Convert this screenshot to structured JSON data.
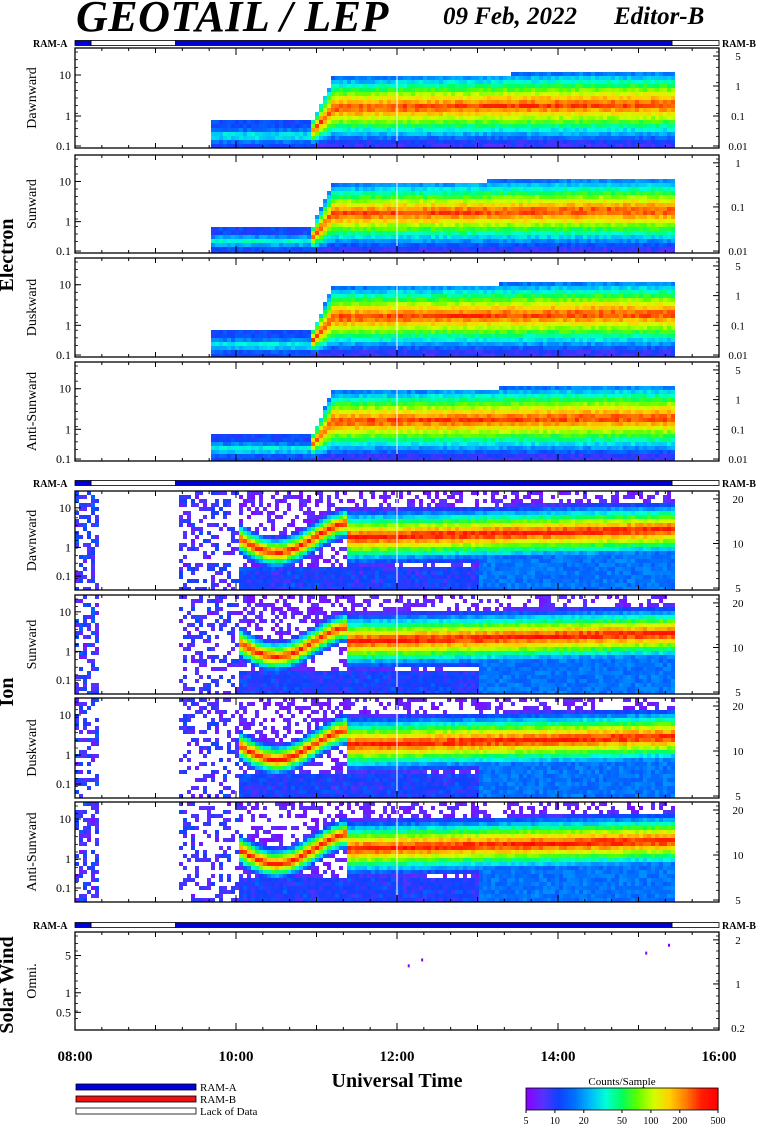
{
  "header": {
    "title": "GEOTAIL / LEP",
    "date": "09 Feb, 2022",
    "editor": "Editor-B"
  },
  "ram_labels": {
    "ram_a": "RAM-A",
    "ram_b": "RAM-B"
  },
  "groups": [
    {
      "label": "Electron"
    },
    {
      "label": "Ion"
    },
    {
      "label": "Solar Wind"
    }
  ],
  "panels": [
    {
      "label": "Dawnward",
      "species": "electron",
      "left_ticks": [
        "10",
        "1",
        "0.1"
      ],
      "right_ticks": [
        "5",
        "1",
        "0.1",
        "0.01"
      ]
    },
    {
      "label": "Sunward",
      "species": "electron",
      "left_ticks": [
        "10",
        "1",
        "0.1"
      ],
      "right_ticks": [
        "1",
        "0.1",
        "0.01"
      ]
    },
    {
      "label": "Duskward",
      "species": "electron",
      "left_ticks": [
        "10",
        "1",
        "0.1"
      ],
      "right_ticks": [
        "5",
        "1",
        "0.1",
        "0.01"
      ]
    },
    {
      "label": "Anti-Sunward",
      "species": "electron",
      "left_ticks": [
        "10",
        "1",
        "0.1"
      ],
      "right_ticks": [
        "5",
        "1",
        "0.1",
        "0.01"
      ]
    },
    {
      "label": "Dawnward",
      "species": "ion",
      "left_ticks": [
        "10",
        "1",
        "0.1"
      ],
      "right_ticks": [
        "20",
        "10",
        "5"
      ]
    },
    {
      "label": "Sunward",
      "species": "ion",
      "left_ticks": [
        "10",
        "1",
        "0.1"
      ],
      "right_ticks": [
        "20",
        "10",
        "5"
      ]
    },
    {
      "label": "Duskward",
      "species": "ion",
      "left_ticks": [
        "10",
        "1",
        "0.1"
      ],
      "right_ticks": [
        "20",
        "10",
        "5"
      ]
    },
    {
      "label": "Anti-Sunward",
      "species": "ion",
      "left_ticks": [
        "10",
        "1",
        "0.1"
      ],
      "right_ticks": [
        "20",
        "10",
        "5"
      ]
    },
    {
      "label": "Omni.",
      "species": "solarwind",
      "left_ticks": [
        "5",
        "1",
        "0.5"
      ],
      "right_ticks": [
        "2",
        "1",
        "0.2"
      ]
    }
  ],
  "chart_data": {
    "type": "heatmap",
    "title": "GEOTAIL / LEP",
    "xlabel": "Universal Time",
    "x_ticks": [
      "08:00",
      "10:00",
      "12:00",
      "14:00",
      "16:00"
    ],
    "xlim": [
      "08:00",
      "16:00"
    ],
    "y_scale": "log",
    "ram_timeline": [
      {
        "state": "RAM-A",
        "start": "08:00",
        "end": "08:12"
      },
      {
        "state": "Lack of Data",
        "start": "08:12",
        "end": "09:15"
      },
      {
        "state": "RAM-A",
        "start": "09:15",
        "end": "15:25"
      },
      {
        "state": "Lack of Data",
        "start": "15:25",
        "end": "16:00"
      }
    ],
    "colorbar": {
      "label": "Counts/Sample",
      "ticks": [
        "5",
        "10",
        "20",
        "50",
        "100",
        "200",
        "500"
      ],
      "scale": "log",
      "colors": [
        "#8a00ff",
        "#5a30ff",
        "#1040ff",
        "#0070ff",
        "#00b8ff",
        "#00ffd8",
        "#00ff60",
        "#60ff00",
        "#d0ff00",
        "#ffd000",
        "#ff8000",
        "#ff2000",
        "#ff0000"
      ]
    }
  },
  "legend": {
    "items": [
      {
        "label": "RAM-A",
        "color": "#0000dd"
      },
      {
        "label": "RAM-B",
        "color": "#ee1111"
      },
      {
        "label": "Lack of Data",
        "color": "#ffffff"
      }
    ]
  }
}
